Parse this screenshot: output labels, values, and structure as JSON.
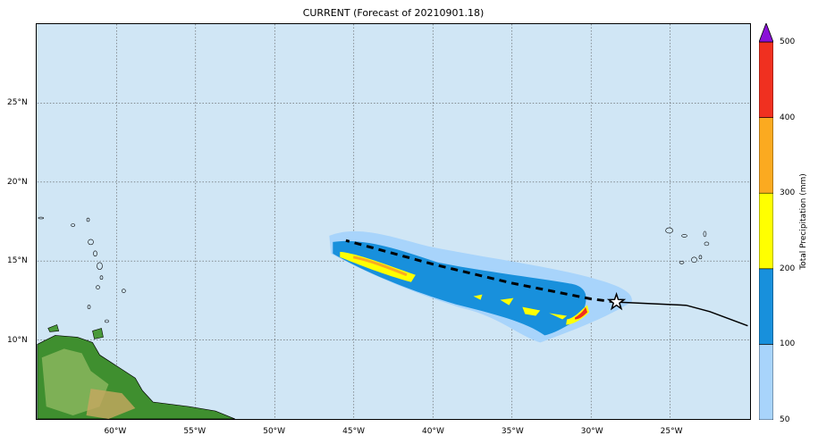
{
  "title": "CURRENT (Forecast of 20210901.18)",
  "map": {
    "extent": {
      "lon": [
        -65,
        -20
      ],
      "lat": [
        5,
        30
      ]
    },
    "x_ticks": [
      {
        "lon": -60,
        "label": "60°W"
      },
      {
        "lon": -55,
        "label": "55°W"
      },
      {
        "lon": -50,
        "label": "50°W"
      },
      {
        "lon": -45,
        "label": "45°W"
      },
      {
        "lon": -40,
        "label": "40°W"
      },
      {
        "lon": -35,
        "label": "35°W"
      },
      {
        "lon": -30,
        "label": "30°W"
      },
      {
        "lon": -25,
        "label": "25°W"
      }
    ],
    "y_ticks": [
      {
        "lat": 25,
        "label": "25°N"
      },
      {
        "lat": 20,
        "label": "20°N"
      },
      {
        "lat": 15,
        "label": "15°N"
      },
      {
        "lat": 10,
        "label": "10°N"
      }
    ],
    "ocean_color": "#d0e6f5",
    "storm_position": {
      "lon": -28.4,
      "lat": 12.4
    },
    "past_track": [
      [
        -28.4,
        12.4
      ],
      [
        -24,
        12.2
      ],
      [
        -22.5,
        11.8
      ],
      [
        -20.1,
        10.9
      ]
    ],
    "forecast_track": [
      [
        -28.4,
        12.4
      ],
      [
        -30,
        12.6
      ],
      [
        -35,
        13.6
      ],
      [
        -40,
        14.8
      ],
      [
        -45.5,
        16.3
      ]
    ]
  },
  "colorbar": {
    "label": "Total Precipitation (mm)",
    "ticks": [
      "50",
      "100",
      "200",
      "300",
      "400",
      "500"
    ],
    "bins": [
      {
        "from": 50,
        "to": 100,
        "color": "#a8d4fb"
      },
      {
        "from": 100,
        "to": 200,
        "color": "#1890dc"
      },
      {
        "from": 200,
        "to": 300,
        "color": "#ffff00"
      },
      {
        "from": 300,
        "to": 400,
        "color": "#fbaa20"
      },
      {
        "from": 400,
        "to": 500,
        "color": "#f03020"
      }
    ],
    "extend_color": "#8a10d8"
  }
}
